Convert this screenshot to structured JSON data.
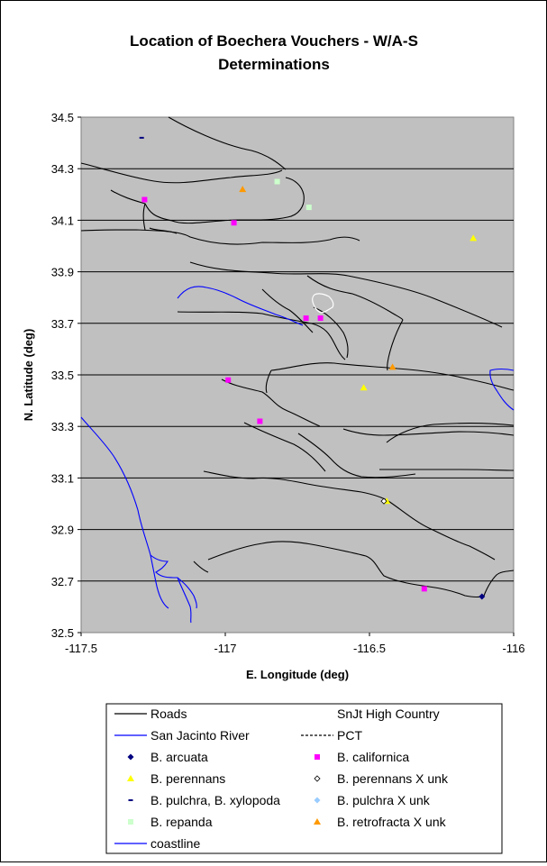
{
  "chart_data": {
    "type": "scatter",
    "title_line1": "Location of Boechera Vouchers - W/A-S",
    "title_line2": "Determinations",
    "xlabel": "E. Longitude (deg)",
    "ylabel": "N. Latitude (deg)",
    "xlim": [
      -117.5,
      -116
    ],
    "ylim": [
      32.5,
      34.5
    ],
    "x_ticks": [
      -117.5,
      -117,
      -116.5,
      -116
    ],
    "x_tick_labels": [
      "-117.5",
      "-117",
      "-116.5",
      "-116"
    ],
    "y_ticks": [
      32.5,
      32.7,
      32.9,
      33.1,
      33.3,
      33.5,
      33.7,
      33.9,
      34.1,
      34.3,
      34.5
    ],
    "y_tick_labels": [
      "32.5",
      "32.7",
      "32.9",
      "33.1",
      "33.3",
      "33.5",
      "33.7",
      "33.9",
      "34.1",
      "34.3",
      "34.5"
    ],
    "grid": "horizontal",
    "plot_background": "#c0c0c0",
    "legend_position": "bottom",
    "series": [
      {
        "name": "Roads",
        "kind": "line",
        "color": "#000000"
      },
      {
        "name": "SnJt High Country",
        "kind": "line",
        "color": "#ffffff"
      },
      {
        "name": "San Jacinto River",
        "kind": "line",
        "color": "#0000ff"
      },
      {
        "name": "PCT",
        "kind": "dashed",
        "color": "#000000"
      },
      {
        "name": "B. arcuata",
        "kind": "diamond",
        "color": "#000080",
        "points": [
          [
            -116.11,
            32.64
          ]
        ]
      },
      {
        "name": "B. californica",
        "kind": "square",
        "color": "#ff00ff",
        "points": [
          [
            -117.28,
            34.18
          ],
          [
            -116.97,
            34.09
          ],
          [
            -116.72,
            33.72
          ],
          [
            -116.67,
            33.72
          ],
          [
            -116.99,
            33.48
          ],
          [
            -116.88,
            33.32
          ],
          [
            -116.31,
            32.67
          ]
        ]
      },
      {
        "name": "B. perennans",
        "kind": "triangle",
        "color": "#ffff00",
        "points": [
          [
            -116.14,
            34.03
          ],
          [
            -116.52,
            33.45
          ],
          [
            -116.44,
            33.01
          ]
        ]
      },
      {
        "name": "B. perennans X unk",
        "kind": "circle",
        "color": "#ffffff",
        "points": [
          [
            -116.45,
            33.01
          ]
        ]
      },
      {
        "name": "B. pulchra, B. xylopoda",
        "kind": "dash",
        "color": "#000080",
        "points": [
          [
            -117.29,
            34.42
          ]
        ]
      },
      {
        "name": "B. pulchra X unk",
        "kind": "diamond",
        "color": "#99ccff",
        "points": []
      },
      {
        "name": "B. repanda",
        "kind": "square",
        "color": "#ccffcc",
        "points": [
          [
            -116.82,
            34.25
          ],
          [
            -116.71,
            34.15
          ]
        ]
      },
      {
        "name": "B. retrofracta X unk",
        "kind": "triangle",
        "color": "#ff9900",
        "points": [
          [
            -116.94,
            34.22
          ],
          [
            -116.42,
            33.53
          ]
        ]
      },
      {
        "name": "coastline",
        "kind": "line",
        "color": "#0000ff"
      }
    ]
  }
}
